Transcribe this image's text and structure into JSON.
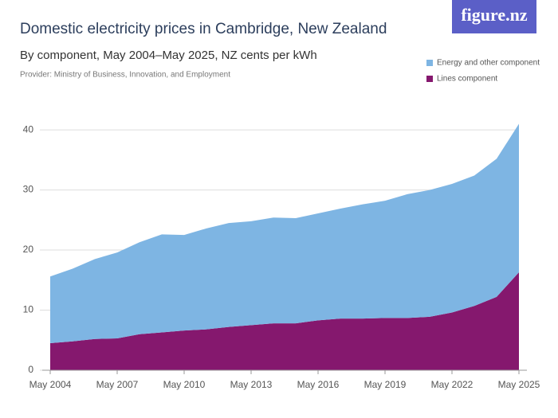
{
  "brand": "figure.nz",
  "chart_data": {
    "type": "stacked_area",
    "title": "Domestic electricity prices in Cambridge, New Zealand",
    "subtitle": "By component, May 2004–May 2025, NZ cents per kWh",
    "source": "Provider: Ministry of Business, Innovation, and Employment",
    "x": [
      "May 2004",
      "May 2005",
      "May 2006",
      "May 2007",
      "May 2008",
      "May 2009",
      "May 2010",
      "May 2011",
      "May 2012",
      "May 2013",
      "May 2014",
      "May 2015",
      "May 2016",
      "May 2017",
      "May 2018",
      "May 2019",
      "May 2020",
      "May 2021",
      "May 2022",
      "May 2023",
      "May 2024",
      "May 2025"
    ],
    "xticks": [
      "May 2004",
      "May 2007",
      "May 2010",
      "May 2013",
      "May 2016",
      "May 2019",
      "May 2022",
      "May 2025"
    ],
    "series": [
      {
        "name": "Lines component",
        "color": "#85186e",
        "values": [
          4.5,
          4.8,
          5.2,
          5.3,
          6.0,
          6.3,
          6.6,
          6.8,
          7.2,
          7.5,
          7.8,
          7.8,
          8.3,
          8.6,
          8.6,
          8.7,
          8.7,
          8.9,
          9.6,
          10.7,
          12.2,
          16.3
        ]
      },
      {
        "name": "Energy and other component",
        "color": "#7eb5e3",
        "values": [
          11.1,
          12.1,
          13.3,
          14.3,
          15.3,
          16.3,
          15.9,
          16.8,
          17.3,
          17.3,
          17.6,
          17.5,
          17.8,
          18.3,
          19.0,
          19.5,
          20.6,
          21.1,
          21.4,
          21.7,
          23.0,
          24.7
        ]
      }
    ],
    "ylim": [
      0,
      42
    ],
    "yticks": [
      0,
      10,
      20,
      30,
      40
    ],
    "grid": true
  }
}
